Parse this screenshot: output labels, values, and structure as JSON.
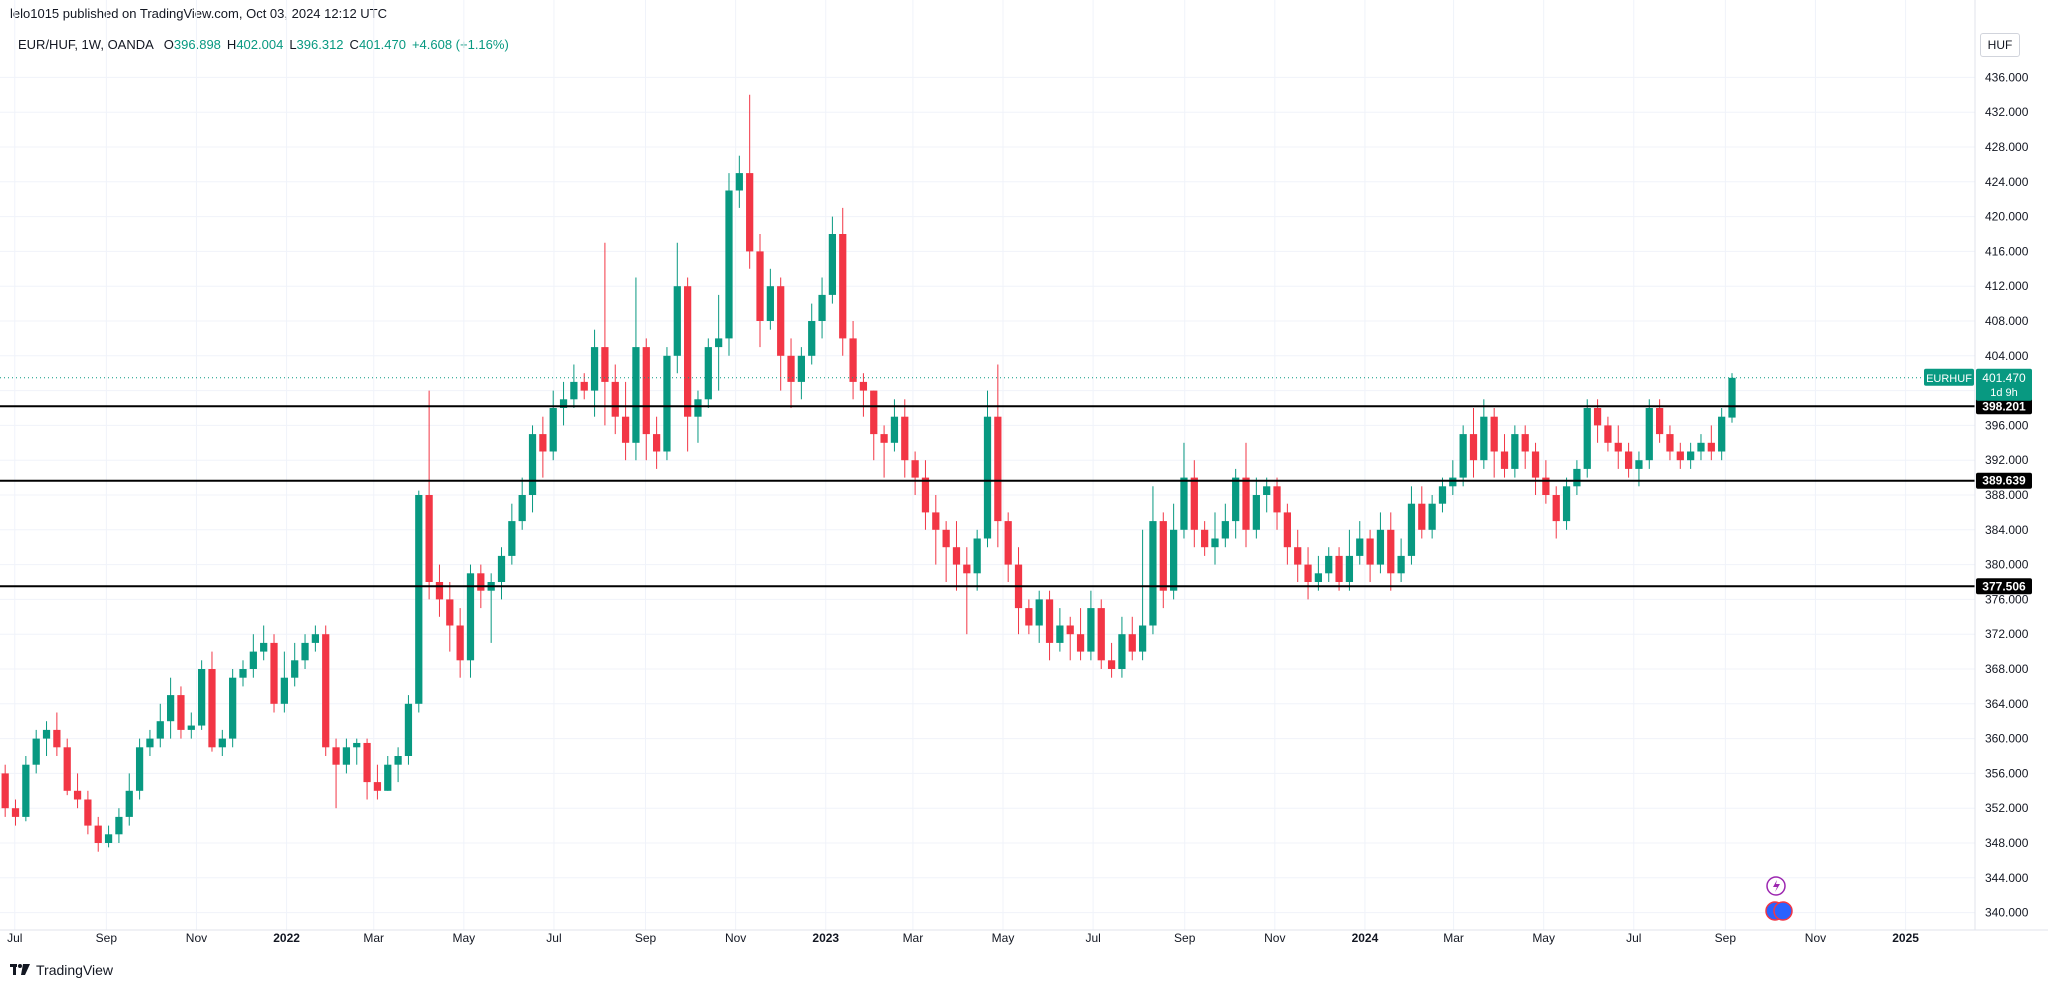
{
  "header": {
    "published": "lelo1015 published on TradingView.com, Oct 03, 2024 12:12 UTC"
  },
  "legend": {
    "symbol": "EUR/HUF, 1W, OANDA",
    "open_label": "O",
    "open": "396.898",
    "high_label": "H",
    "high": "402.004",
    "low_label": "L",
    "low": "396.312",
    "close_label": "C",
    "close": "401.470",
    "change": "+4.608 (+1.16%)"
  },
  "currency_button": "HUF",
  "footer": {
    "brand": "TradingView"
  },
  "icons": [
    "lightning-icon",
    "events-icon",
    "tradingview-logo-icon"
  ],
  "colors": {
    "up": "#089981",
    "down": "#f23645",
    "last_price": "#089981",
    "level": "#000000",
    "grid": "#f0f3fa"
  },
  "chart_data": {
    "type": "candlestick",
    "title": "EUR/HUF, 1W, OANDA",
    "ylim": [
      338,
      438
    ],
    "x_range": [
      "2021-06-21",
      "2025-02-17"
    ],
    "y_ticks": [
      "340.000",
      "344.000",
      "348.000",
      "352.000",
      "356.000",
      "360.000",
      "364.000",
      "368.000",
      "372.000",
      "376.000",
      "380.000",
      "384.000",
      "388.000",
      "392.000",
      "396.000",
      "400.000",
      "404.000",
      "408.000",
      "412.000",
      "416.000",
      "420.000",
      "424.000",
      "428.000",
      "432.000",
      "436.000"
    ],
    "x_ticks": [
      {
        "label": "Jul",
        "date": "2021-07-01"
      },
      {
        "label": "Sep",
        "date": "2021-09-01"
      },
      {
        "label": "Nov",
        "date": "2021-11-01"
      },
      {
        "label": "2022",
        "date": "2022-01-01",
        "bold": true
      },
      {
        "label": "Mar",
        "date": "2022-03-01"
      },
      {
        "label": "May",
        "date": "2022-05-01"
      },
      {
        "label": "Jul",
        "date": "2022-07-01"
      },
      {
        "label": "Sep",
        "date": "2022-09-01"
      },
      {
        "label": "Nov",
        "date": "2022-11-01"
      },
      {
        "label": "2023",
        "date": "2023-01-01",
        "bold": true
      },
      {
        "label": "Mar",
        "date": "2023-03-01"
      },
      {
        "label": "May",
        "date": "2023-05-01"
      },
      {
        "label": "Jul",
        "date": "2023-07-01"
      },
      {
        "label": "Sep",
        "date": "2023-09-01"
      },
      {
        "label": "Nov",
        "date": "2023-11-01"
      },
      {
        "label": "2024",
        "date": "2024-01-01",
        "bold": true
      },
      {
        "label": "Mar",
        "date": "2024-03-01"
      },
      {
        "label": "May",
        "date": "2024-05-01"
      },
      {
        "label": "Jul",
        "date": "2024-07-01"
      },
      {
        "label": "Sep",
        "date": "2024-09-01"
      },
      {
        "label": "Nov",
        "date": "2024-11-01"
      },
      {
        "label": "2025",
        "date": "2025-01-01",
        "bold": true
      }
    ],
    "first_week": "2021-06-21",
    "ohlc_note": "weekly open/close; wicks at high/low",
    "candles": [
      [
        356,
        352,
        357,
        351
      ],
      [
        352,
        351,
        353,
        350
      ],
      [
        351,
        357,
        358,
        350.5
      ],
      [
        357,
        360,
        361,
        356
      ],
      [
        360,
        361,
        362,
        358
      ],
      [
        361,
        359,
        363,
        358
      ],
      [
        359,
        354,
        360,
        353.5
      ],
      [
        354,
        353,
        356,
        352
      ],
      [
        353,
        350,
        354,
        349
      ],
      [
        350,
        348,
        351,
        347
      ],
      [
        348,
        349,
        350,
        347.5
      ],
      [
        349,
        351,
        352,
        348
      ],
      [
        351,
        354,
        356,
        350
      ],
      [
        354,
        359,
        360,
        353
      ],
      [
        359,
        360,
        361,
        358
      ],
      [
        360,
        362,
        364,
        359
      ],
      [
        362,
        365,
        367,
        360
      ],
      [
        365,
        361,
        366,
        360
      ],
      [
        361,
        361.5,
        363,
        360
      ],
      [
        361.5,
        368,
        369,
        361
      ],
      [
        368,
        359,
        370,
        358.5
      ],
      [
        359,
        360,
        361,
        358
      ],
      [
        360,
        367,
        368,
        359
      ],
      [
        367,
        368,
        369,
        366
      ],
      [
        368,
        370,
        372,
        367
      ],
      [
        370,
        371,
        373,
        369
      ],
      [
        371,
        364,
        372,
        363
      ],
      [
        364,
        367,
        370,
        363
      ],
      [
        367,
        369,
        371,
        366
      ],
      [
        369,
        371,
        372,
        368
      ],
      [
        371,
        372,
        373,
        370
      ],
      [
        372,
        359,
        373,
        358
      ],
      [
        359,
        357,
        360,
        352
      ],
      [
        357,
        359,
        360,
        356
      ],
      [
        359,
        359.5,
        360,
        357
      ],
      [
        359.5,
        355,
        360,
        353
      ],
      [
        355,
        354,
        357,
        353
      ],
      [
        354,
        357,
        358,
        354
      ],
      [
        357,
        358,
        359,
        355
      ],
      [
        358,
        364,
        365,
        357
      ],
      [
        364,
        388,
        388.5,
        363
      ],
      [
        388,
        378,
        400,
        376
      ],
      [
        378,
        376,
        380,
        374
      ],
      [
        376,
        373,
        378,
        370
      ],
      [
        373,
        369,
        375,
        367
      ],
      [
        369,
        379,
        380,
        367
      ],
      [
        379,
        377,
        380,
        375
      ],
      [
        377,
        378,
        379,
        371
      ],
      [
        378,
        381,
        382,
        376
      ],
      [
        381,
        385,
        387,
        380
      ],
      [
        385,
        388,
        390,
        384
      ],
      [
        388,
        395,
        396,
        386
      ],
      [
        395,
        393,
        397,
        390
      ],
      [
        393,
        398,
        400,
        392
      ],
      [
        398,
        399,
        401,
        396
      ],
      [
        399,
        401,
        403,
        398
      ],
      [
        401,
        400,
        402,
        399
      ],
      [
        400,
        405,
        407,
        397
      ],
      [
        405,
        401,
        417,
        396
      ],
      [
        401,
        397,
        403,
        395
      ],
      [
        397,
        394,
        401,
        392
      ],
      [
        394,
        405,
        413,
        392
      ],
      [
        405,
        395,
        406,
        392
      ],
      [
        395,
        393,
        397,
        391
      ],
      [
        393,
        404,
        405,
        392
      ],
      [
        404,
        412,
        417,
        402
      ],
      [
        412,
        397,
        413,
        393
      ],
      [
        397,
        399,
        400,
        394
      ],
      [
        399,
        405,
        406,
        398
      ],
      [
        405,
        406,
        411,
        400
      ],
      [
        406,
        423,
        425,
        404
      ],
      [
        423,
        425,
        427,
        421
      ],
      [
        425,
        416,
        434,
        414
      ],
      [
        416,
        408,
        418,
        405
      ],
      [
        408,
        412,
        414,
        407
      ],
      [
        412,
        404,
        413,
        400
      ],
      [
        404,
        401,
        406,
        398
      ],
      [
        401,
        404,
        405,
        399
      ],
      [
        404,
        408,
        410,
        403
      ],
      [
        408,
        411,
        413,
        406
      ],
      [
        411,
        418,
        420,
        410
      ],
      [
        418,
        406,
        421,
        404
      ],
      [
        406,
        401,
        408,
        399
      ],
      [
        401,
        400,
        402,
        397
      ],
      [
        400,
        395,
        400,
        392
      ],
      [
        395,
        394,
        396,
        390
      ],
      [
        394,
        397,
        399,
        393
      ],
      [
        397,
        392,
        399,
        390
      ],
      [
        392,
        390,
        393,
        388
      ],
      [
        390,
        386,
        392,
        384
      ],
      [
        386,
        384,
        388,
        380
      ],
      [
        384,
        382,
        385,
        378
      ],
      [
        382,
        380,
        385,
        377
      ],
      [
        380,
        379,
        382,
        372
      ],
      [
        379,
        383,
        384,
        377
      ],
      [
        383,
        397,
        400,
        382
      ],
      [
        397,
        385,
        403,
        382
      ],
      [
        385,
        380,
        386,
        378
      ],
      [
        380,
        375,
        382,
        372
      ],
      [
        375,
        373,
        376,
        372
      ],
      [
        373,
        376,
        377,
        371
      ],
      [
        376,
        371,
        377,
        369
      ],
      [
        371,
        373,
        375,
        370
      ],
      [
        373,
        372,
        374,
        369
      ],
      [
        372,
        370,
        375,
        369
      ],
      [
        370,
        375,
        377,
        369
      ],
      [
        375,
        369,
        376,
        368
      ],
      [
        369,
        368,
        371,
        367
      ],
      [
        368,
        372,
        374,
        367
      ],
      [
        372,
        370,
        374,
        369
      ],
      [
        370,
        373,
        384,
        369
      ],
      [
        373,
        385,
        389,
        372
      ],
      [
        385,
        377,
        386,
        375
      ],
      [
        377,
        384,
        387,
        376
      ],
      [
        384,
        390,
        394,
        383
      ],
      [
        390,
        384,
        392,
        382
      ],
      [
        384,
        382,
        385,
        381
      ],
      [
        382,
        383,
        386,
        380
      ],
      [
        383,
        385,
        387,
        382
      ],
      [
        385,
        390,
        391,
        383
      ],
      [
        390,
        384,
        394,
        382
      ],
      [
        384,
        388,
        390,
        383
      ],
      [
        388,
        389,
        390,
        386
      ],
      [
        389,
        386,
        390,
        384
      ],
      [
        386,
        382,
        387,
        380
      ],
      [
        382,
        380,
        384,
        378
      ],
      [
        380,
        378,
        382,
        376
      ],
      [
        378,
        379,
        381,
        377
      ],
      [
        379,
        381,
        382,
        378
      ],
      [
        381,
        378,
        382,
        377
      ],
      [
        378,
        381,
        384,
        377
      ],
      [
        381,
        383,
        385,
        380
      ],
      [
        383,
        380,
        384,
        378
      ],
      [
        380,
        384,
        386,
        379
      ],
      [
        384,
        379,
        386,
        377
      ],
      [
        379,
        381,
        383,
        378
      ],
      [
        381,
        387,
        389,
        380
      ],
      [
        387,
        384,
        389,
        383
      ],
      [
        384,
        387,
        388,
        383
      ],
      [
        387,
        389,
        390,
        386
      ],
      [
        389,
        390,
        392,
        388
      ],
      [
        390,
        395,
        396,
        389
      ],
      [
        395,
        392,
        398,
        390
      ],
      [
        392,
        397,
        399,
        391
      ],
      [
        397,
        393,
        398,
        390
      ],
      [
        393,
        391,
        395,
        390
      ],
      [
        391,
        395,
        396,
        390
      ],
      [
        395,
        393,
        396,
        391
      ],
      [
        393,
        390,
        394,
        388
      ],
      [
        390,
        388,
        392,
        387
      ],
      [
        388,
        385,
        389,
        383
      ],
      [
        385,
        389,
        390,
        384
      ],
      [
        389,
        391,
        392,
        388
      ],
      [
        391,
        398,
        399,
        390
      ],
      [
        398,
        396,
        399,
        394
      ],
      [
        396,
        394,
        397,
        393
      ],
      [
        394,
        393,
        396,
        391
      ],
      [
        393,
        391,
        394,
        390
      ],
      [
        391,
        392,
        393,
        389
      ],
      [
        392,
        398,
        399,
        391
      ],
      [
        398,
        395,
        399,
        394
      ],
      [
        395,
        393,
        396,
        392
      ],
      [
        393,
        392,
        394,
        391
      ],
      [
        392,
        393,
        394,
        391
      ],
      [
        393,
        394,
        395,
        392
      ],
      [
        394,
        393,
        396,
        392
      ],
      [
        393,
        397,
        398,
        392
      ],
      [
        396.898,
        401.47,
        402.004,
        396.312
      ]
    ],
    "levels": [
      {
        "label": "398.201",
        "value": 398.201
      },
      {
        "label": "389.639",
        "value": 389.639
      },
      {
        "label": "377.506",
        "value": 377.506
      }
    ],
    "last_price": {
      "symbol": "EURHUF",
      "price": "401.470",
      "countdown": "1d 9h",
      "value": 401.47
    }
  }
}
